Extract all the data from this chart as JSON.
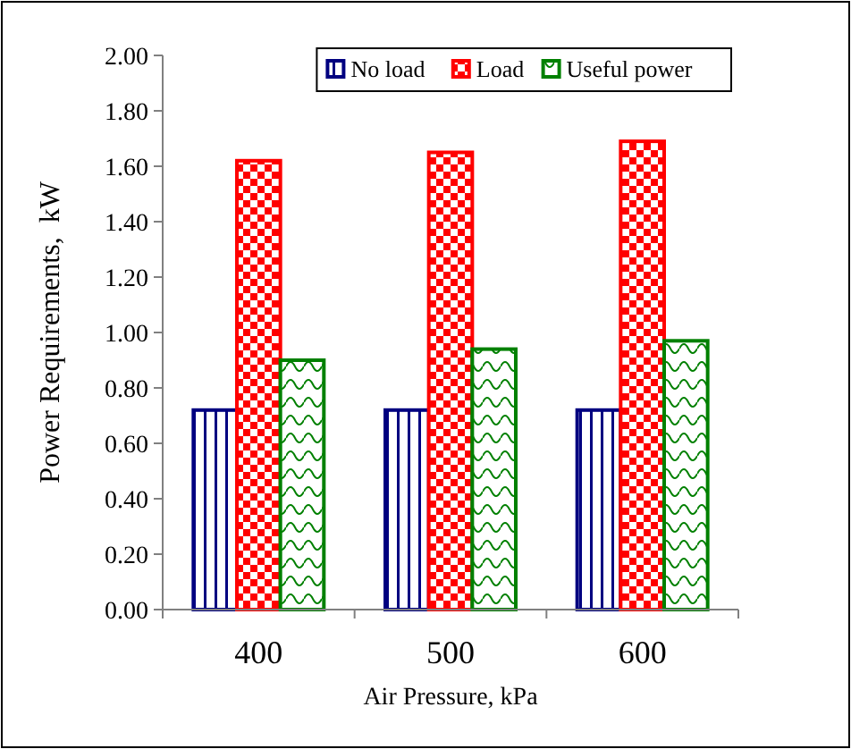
{
  "chart_data": {
    "type": "bar",
    "xlabel": "Air Pressure, kPa",
    "ylabel": "Power Requirements,  kW",
    "categories": [
      "400",
      "500",
      "600"
    ],
    "series": [
      {
        "name": "No load",
        "color": "#000080",
        "values": [
          0.72,
          0.72,
          0.72
        ]
      },
      {
        "name": "Load",
        "color": "#ff0000",
        "values": [
          1.62,
          1.65,
          1.69
        ]
      },
      {
        "name": "Useful power",
        "color": "#008000",
        "values": [
          0.9,
          0.94,
          0.97
        ]
      }
    ],
    "ylim": [
      0,
      2
    ],
    "yticks": [
      {
        "value": 0,
        "label": "0.00"
      },
      {
        "value": 0.2,
        "label": "0.20"
      },
      {
        "value": 0.4,
        "label": "0.40"
      },
      {
        "value": 0.6,
        "label": "0.60"
      },
      {
        "value": 0.8,
        "label": "0.80"
      },
      {
        "value": 1,
        "label": "1.00"
      },
      {
        "value": 1.2,
        "label": "1.20"
      },
      {
        "value": 1.4,
        "label": "1.40"
      },
      {
        "value": 1.6,
        "label": "1.60"
      },
      {
        "value": 1.8,
        "label": "1.80"
      },
      {
        "value": 2,
        "label": "2.00"
      }
    ],
    "grid": false,
    "legend": "top right"
  }
}
